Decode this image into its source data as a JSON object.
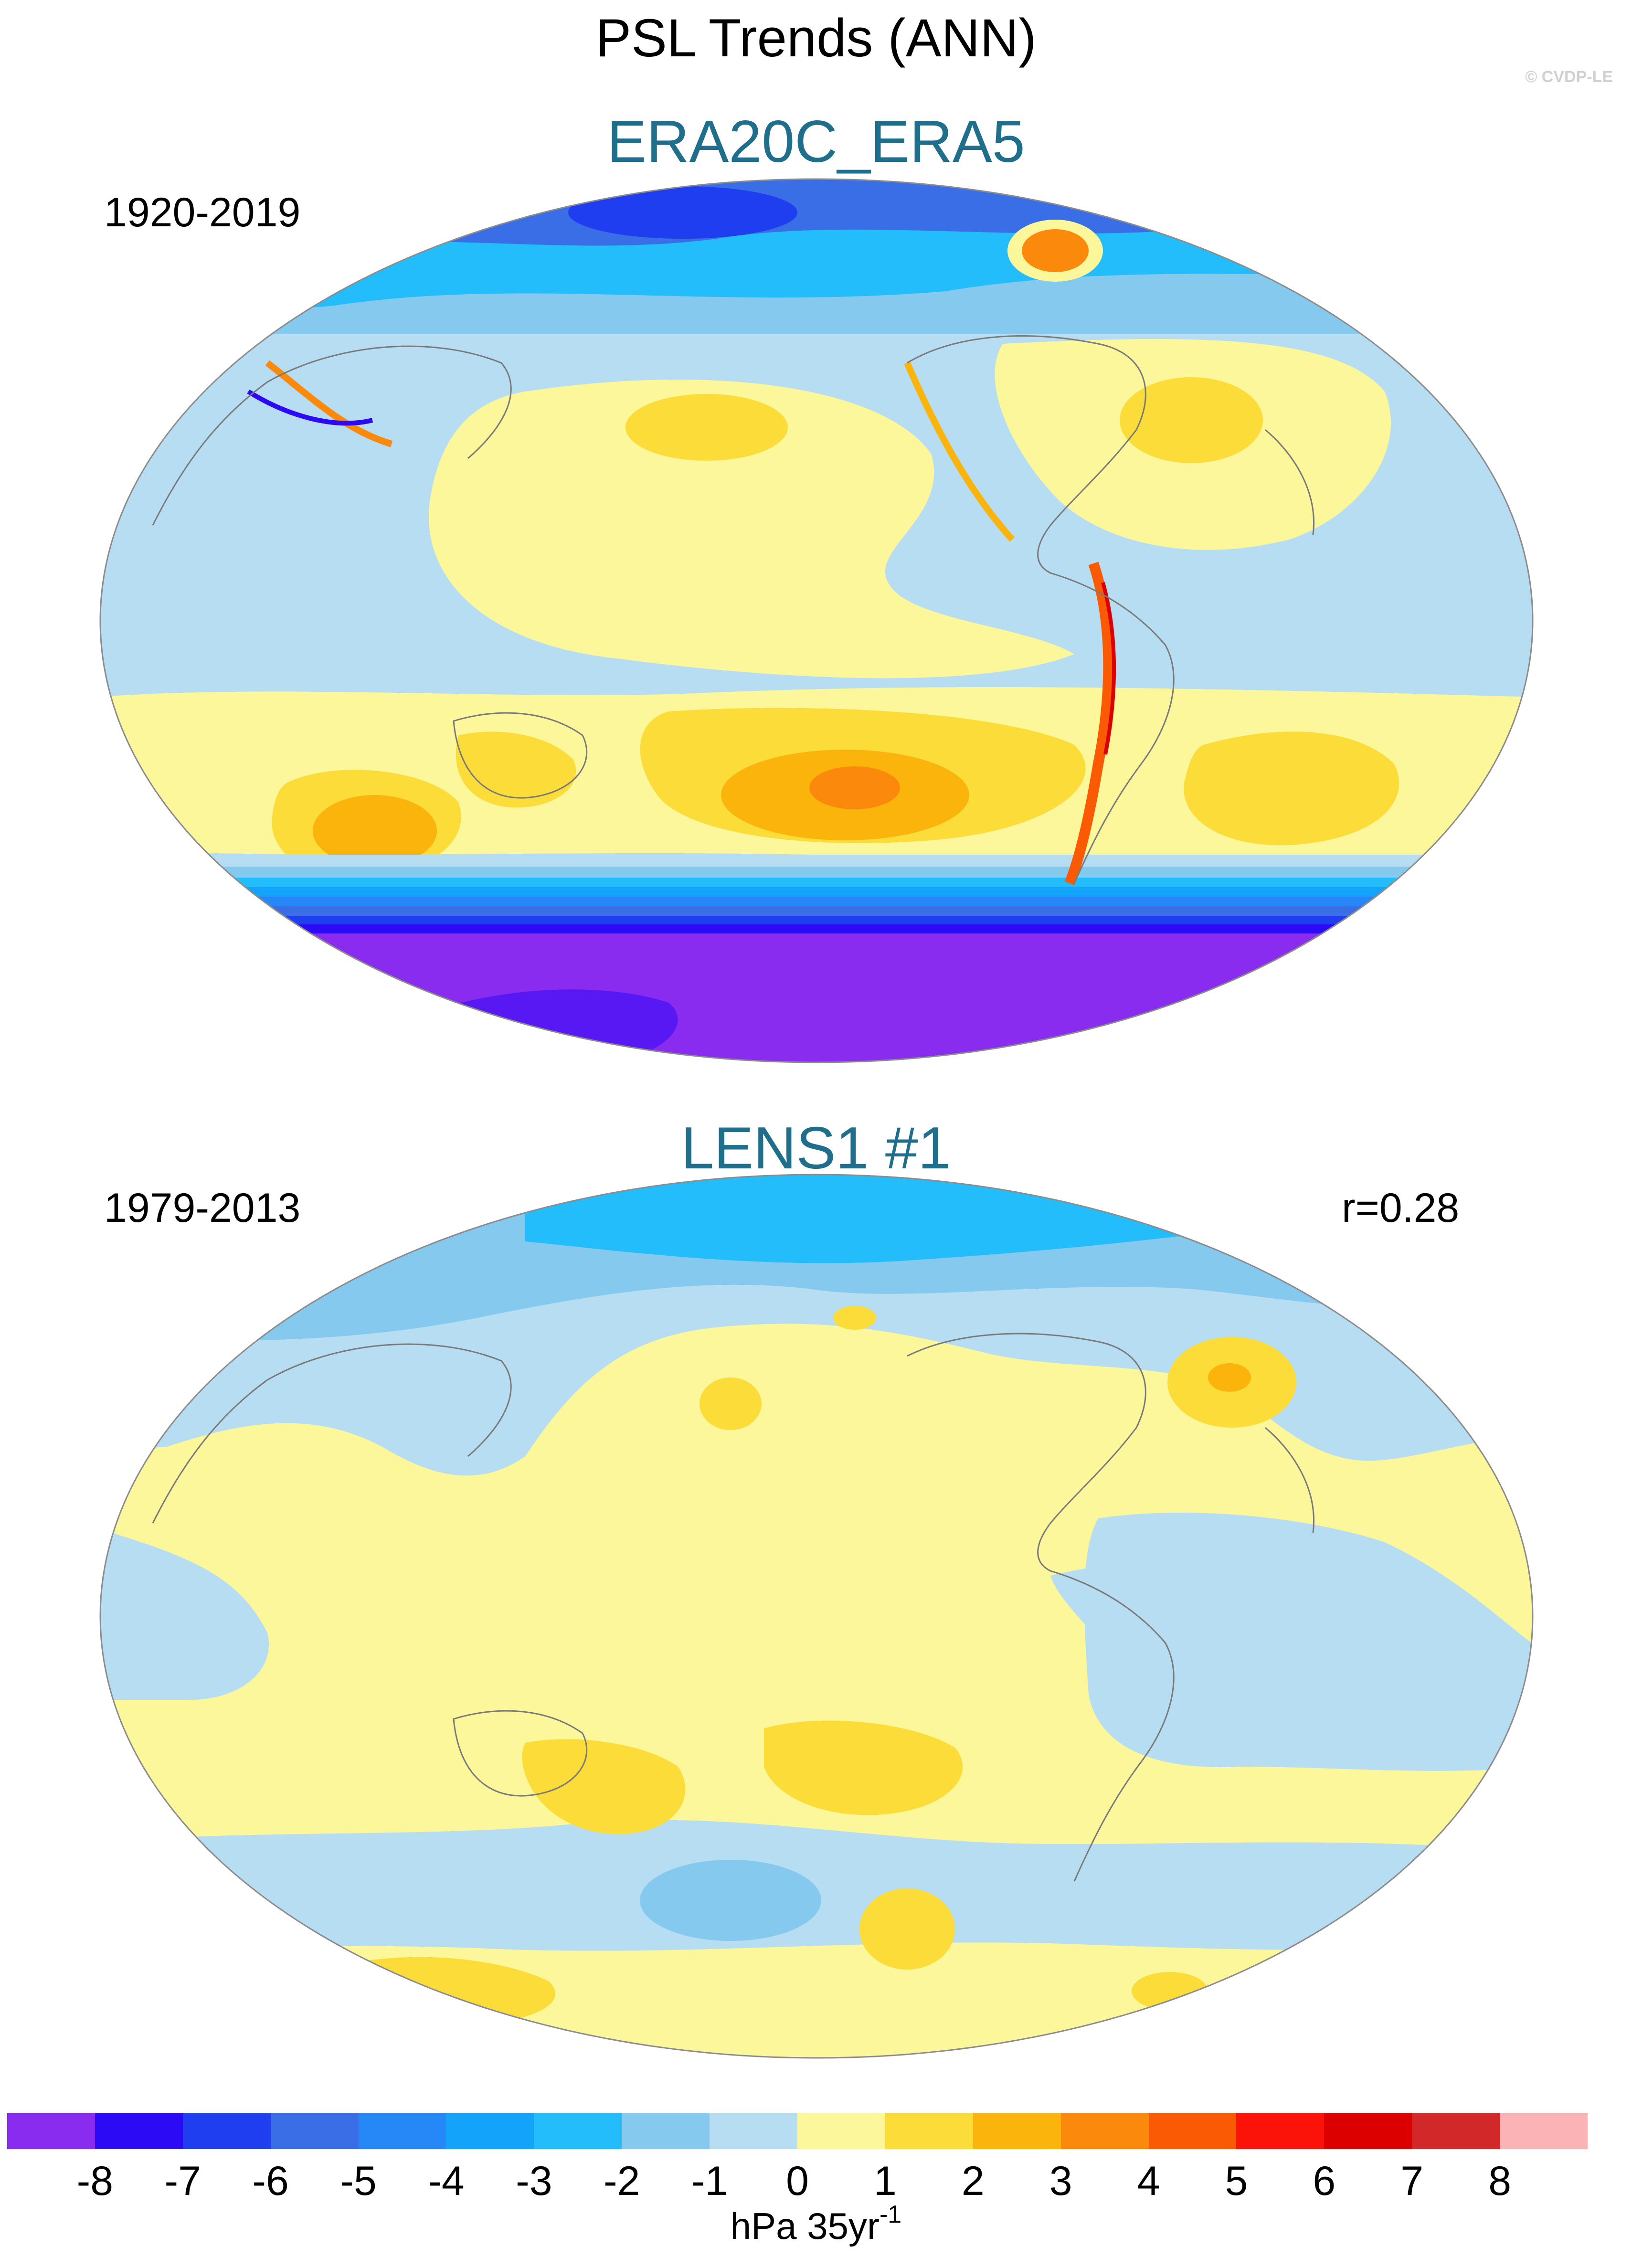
{
  "title": "PSL Trends (ANN)",
  "watermark": "© CVDP-LE",
  "panels": [
    {
      "title": "ERA20C_ERA5",
      "period": "1920-2019"
    },
    {
      "title": "LENS1 #1",
      "period": "1979-2013",
      "correlation": "r=0.28"
    }
  ],
  "colorbar": {
    "colors": [
      "#8a2bf0",
      "#2d0af5",
      "#1e3ef0",
      "#3a6ee6",
      "#2687f7",
      "#14a3fa",
      "#22bdfa",
      "#86c9ee",
      "#b7ddf2",
      "#fdf79b",
      "#fcdc38",
      "#fbb40c",
      "#fb8a0c",
      "#fb5a05",
      "#fb1208",
      "#dc0000",
      "#d2282a",
      "#fbb3b6"
    ],
    "ticks": [
      "-8",
      "-7",
      "-6",
      "-5",
      "-4",
      "-3",
      "-2",
      "-1",
      "0",
      "1",
      "2",
      "3",
      "4",
      "5",
      "6",
      "7",
      "8"
    ],
    "units": "hPa 35yr",
    "units_exp": "-1"
  }
}
